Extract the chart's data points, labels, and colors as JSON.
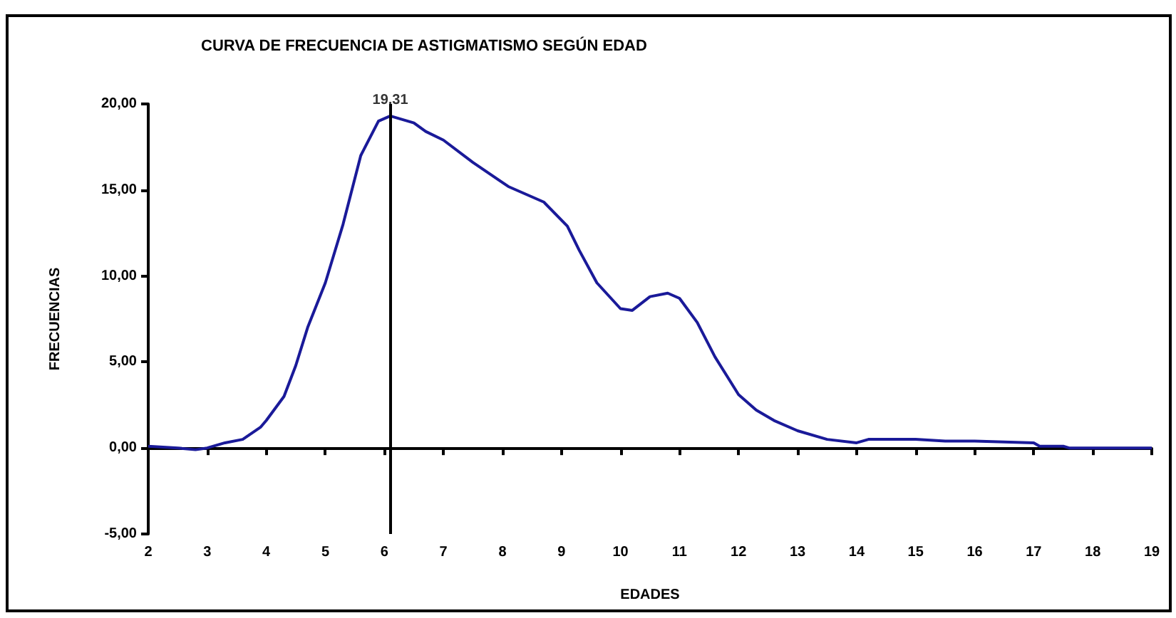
{
  "chart_data": {
    "type": "line",
    "title": "CURVA DE FRECUENCIA DE ASTIGMATISMO SEGÚN EDAD",
    "xlabel": "EDADES",
    "ylabel": "FRECUENCIAS",
    "x": [
      2,
      2.5,
      2.8,
      3,
      3.3,
      3.6,
      3.9,
      4,
      4.3,
      4.5,
      4.7,
      5,
      5.3,
      5.6,
      5.9,
      6.1,
      6.5,
      6.7,
      7,
      7.5,
      8.1,
      8.7,
      9.1,
      9.3,
      9.6,
      10,
      10.2,
      10.5,
      10.8,
      11,
      11.3,
      11.6,
      12,
      12.3,
      12.6,
      13,
      13.5,
      14,
      14.2,
      15,
      15.5,
      16,
      17,
      17.1,
      17.5,
      17.6,
      19
    ],
    "series": [
      {
        "color": "#1a1a99",
        "values": [
          0.1,
          0,
          -0.1,
          0,
          0.3,
          0.5,
          1.2,
          1.6,
          3,
          4.8,
          7,
          9.6,
          13,
          17,
          19,
          19.3,
          18.9,
          18.4,
          17.9,
          16.6,
          15.2,
          14.3,
          12.9,
          11.5,
          9.6,
          8.1,
          8,
          8.8,
          9,
          8.7,
          7.3,
          5.3,
          3.1,
          2.2,
          1.6,
          1,
          0.5,
          0.3,
          0.5,
          0.5,
          0.4,
          0.4,
          0.3,
          0.1,
          0.1,
          0,
          0
        ]
      }
    ],
    "xlim": [
      2,
      19
    ],
    "xticks": [
      2,
      3,
      4,
      5,
      6,
      7,
      8,
      9,
      10,
      11,
      12,
      13,
      14,
      15,
      16,
      17,
      18,
      19
    ],
    "ylim": [
      -5,
      20
    ],
    "yticks": [
      {
        "value": -5,
        "label": "-5,00"
      },
      {
        "value": 0,
        "label": "0,00"
      },
      {
        "value": 5,
        "label": "5,00"
      },
      {
        "value": 10,
        "label": "10,00"
      },
      {
        "value": 15,
        "label": "15,00"
      },
      {
        "value": 20,
        "label": "20,00"
      }
    ],
    "ref_lines": [
      {
        "axis": "x",
        "value": 6.1,
        "color": "#000000"
      }
    ],
    "annotations": [
      {
        "text": "19,31",
        "x": 6.1,
        "y": 19.31
      }
    ],
    "marker": "none",
    "line_style": "solid"
  }
}
